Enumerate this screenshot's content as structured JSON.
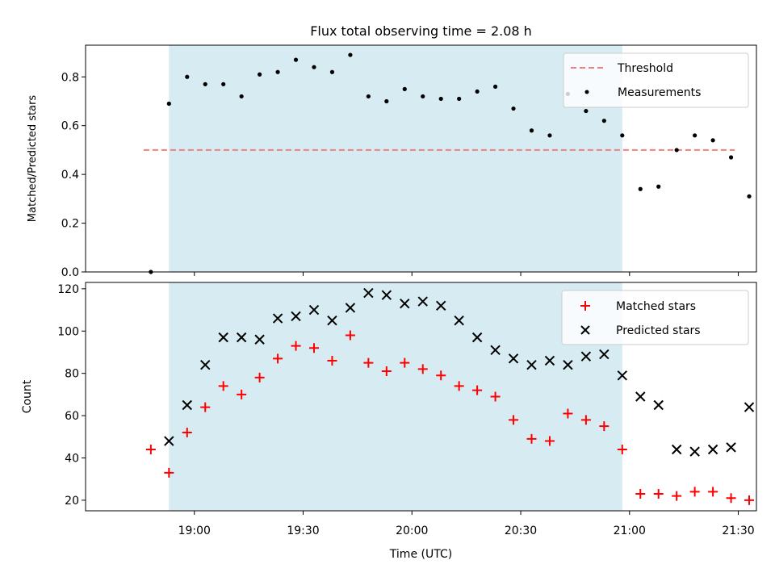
{
  "chart_data": [
    {
      "type": "scatter",
      "title": "Flux total observing time = 2.08 h",
      "xlabel": "",
      "ylabel": "Matched/Predicted stars",
      "xlim": [
        "18:30",
        "21:35"
      ],
      "ylim": [
        0,
        0.93
      ],
      "yticks": [
        "0.0",
        "0.2",
        "0.4",
        "0.6",
        "0.8"
      ],
      "legend_position": "top-right",
      "shaded_span": [
        "18:53",
        "20:58"
      ],
      "colors": {
        "shade": "#add8e6",
        "threshold": "#f08080",
        "measurements": "#000000"
      },
      "series": [
        {
          "name": "Threshold",
          "style": "dashed-line",
          "x": [
            "18:46",
            "21:29"
          ],
          "y": [
            0.5,
            0.5
          ]
        },
        {
          "name": "Measurements",
          "style": "dot",
          "x": [
            "18:48",
            "18:53",
            "18:58",
            "19:03",
            "19:08",
            "19:13",
            "19:18",
            "19:23",
            "19:28",
            "19:33",
            "19:38",
            "19:43",
            "19:48",
            "19:53",
            "19:58",
            "20:03",
            "20:08",
            "20:13",
            "20:18",
            "20:23",
            "20:28",
            "20:33",
            "20:38",
            "20:43",
            "20:48",
            "20:53",
            "20:58",
            "21:03",
            "21:08",
            "21:13",
            "21:18",
            "21:23",
            "21:28",
            "21:33"
          ],
          "y": [
            0.0,
            0.69,
            0.8,
            0.77,
            0.77,
            0.72,
            0.81,
            0.82,
            0.87,
            0.84,
            0.82,
            0.89,
            0.72,
            0.7,
            0.75,
            0.72,
            0.71,
            0.71,
            0.74,
            0.76,
            0.67,
            0.58,
            0.56,
            0.73,
            0.66,
            0.62,
            0.56,
            0.34,
            0.35,
            0.5,
            0.56,
            0.54,
            0.47,
            0.31
          ]
        }
      ]
    },
    {
      "type": "scatter",
      "title": "",
      "xlabel": "Time (UTC)",
      "ylabel": "Count",
      "xlim": [
        "18:30",
        "21:35"
      ],
      "ylim": [
        15,
        123
      ],
      "xticks": [
        "19:00",
        "19:30",
        "20:00",
        "20:30",
        "21:00",
        "21:30"
      ],
      "yticks": [
        "20",
        "40",
        "60",
        "80",
        "100",
        "120"
      ],
      "legend_position": "top-right",
      "shaded_span": [
        "18:53",
        "20:58"
      ],
      "colors": {
        "shade": "#add8e6",
        "matched": "#ff0000",
        "predicted": "#000000"
      },
      "series": [
        {
          "name": "Matched stars",
          "style": "plus",
          "x": [
            "18:48",
            "18:53",
            "18:58",
            "19:03",
            "19:08",
            "19:13",
            "19:18",
            "19:23",
            "19:28",
            "19:33",
            "19:38",
            "19:43",
            "19:48",
            "19:53",
            "19:58",
            "20:03",
            "20:08",
            "20:13",
            "20:18",
            "20:23",
            "20:28",
            "20:33",
            "20:38",
            "20:43",
            "20:48",
            "20:53",
            "20:58",
            "21:03",
            "21:08",
            "21:13",
            "21:18",
            "21:23",
            "21:28",
            "21:33"
          ],
          "y": [
            44,
            33,
            52,
            64,
            74,
            70,
            78,
            87,
            93,
            92,
            86,
            98,
            85,
            81,
            85,
            82,
            79,
            74,
            72,
            69,
            58,
            49,
            48,
            61,
            58,
            55,
            44,
            23,
            23,
            22,
            24,
            24,
            21,
            20
          ]
        },
        {
          "name": "Predicted stars",
          "style": "x",
          "x": [
            "18:53",
            "18:58",
            "19:03",
            "19:08",
            "19:13",
            "19:18",
            "19:23",
            "19:28",
            "19:33",
            "19:38",
            "19:43",
            "19:48",
            "19:53",
            "19:58",
            "20:03",
            "20:08",
            "20:13",
            "20:18",
            "20:23",
            "20:28",
            "20:33",
            "20:38",
            "20:43",
            "20:48",
            "20:53",
            "20:58",
            "21:03",
            "21:08",
            "21:13",
            "21:18",
            "21:23",
            "21:28",
            "21:33"
          ],
          "y": [
            48,
            65,
            84,
            97,
            97,
            96,
            106,
            107,
            110,
            105,
            111,
            118,
            117,
            113,
            114,
            112,
            105,
            97,
            91,
            87,
            84,
            86,
            84,
            88,
            89,
            79,
            69,
            65,
            44,
            43,
            44,
            45,
            64
          ]
        }
      ]
    }
  ]
}
